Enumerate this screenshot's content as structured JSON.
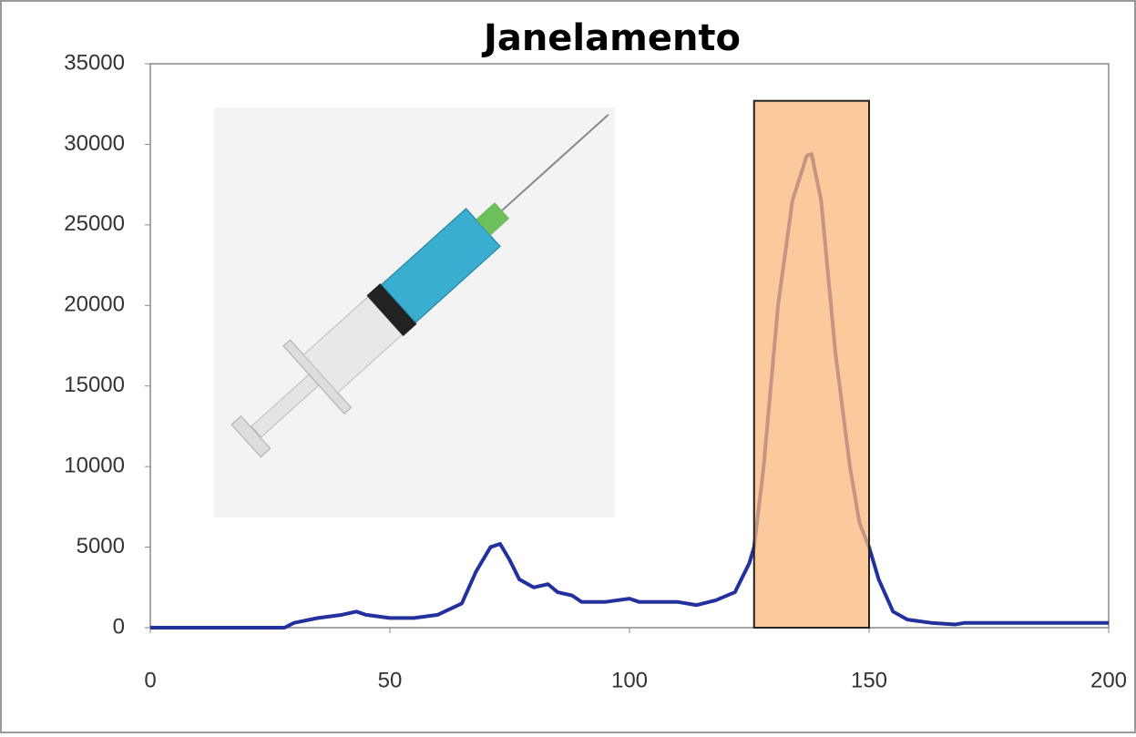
{
  "chart_data": {
    "type": "line",
    "title": "Janelamento",
    "x": [
      0,
      28,
      30,
      35,
      40,
      43,
      45,
      50,
      55,
      60,
      65,
      68,
      71,
      73,
      75,
      77,
      80,
      83,
      85,
      88,
      90,
      95,
      100,
      102,
      110,
      114,
      118,
      122,
      125,
      126,
      128,
      131,
      134,
      137,
      138,
      140,
      143,
      146,
      148,
      150,
      152,
      155,
      158,
      163,
      168,
      170,
      200
    ],
    "values": [
      0,
      0,
      300,
      600,
      800,
      1000,
      800,
      600,
      600,
      800,
      1500,
      3500,
      5000,
      5200,
      4200,
      3000,
      2500,
      2700,
      2200,
      2000,
      1600,
      1600,
      1800,
      1600,
      1600,
      1400,
      1700,
      2200,
      4000,
      5000,
      10000,
      20000,
      26500,
      29300,
      29400,
      26500,
      17000,
      10000,
      6500,
      5000,
      3000,
      1000,
      500,
      300,
      200,
      300,
      300
    ],
    "color": "#22319e",
    "highlight": {
      "x": [
        126,
        150
      ],
      "y": [
        0,
        32700
      ],
      "color": "#f9b77a"
    },
    "xlim": [
      0,
      200
    ],
    "xticks": [
      0,
      50,
      100,
      150,
      200
    ],
    "ylim": [
      0,
      35000
    ],
    "yticks": [
      0,
      5000,
      10000,
      15000,
      20000,
      25000,
      30000,
      35000
    ],
    "grid": false
  }
}
